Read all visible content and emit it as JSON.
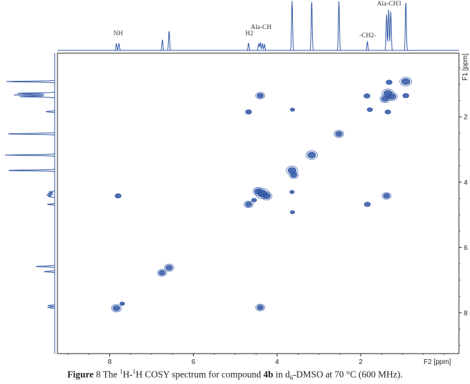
{
  "chart_data": {
    "type": "heatmap",
    "title": "",
    "xlabel": "F2 [ppm]",
    "ylabel": "F1 [ppm]",
    "xlim": [
      9.25,
      -0.35
    ],
    "ylim": [
      0.05,
      9.25
    ],
    "x_ticks": [
      "8",
      "6",
      "4",
      "2"
    ],
    "x_tick_values": [
      8,
      6,
      4,
      2
    ],
    "y_ticks": [
      "2",
      "4",
      "6",
      "8"
    ],
    "y_tick_values": [
      2,
      4,
      6,
      8
    ],
    "accent_color": "#2f55a4",
    "peak_labels": [
      {
        "text": "NH",
        "ppm": 7.8
      },
      {
        "text": "H2",
        "ppm": 4.66
      },
      {
        "text": "Ala-CH",
        "ppm": 4.38
      },
      {
        "text": "-CH2-",
        "ppm": 1.83
      },
      {
        "text": "Ala-CH3",
        "ppm": 1.32
      }
    ],
    "projection_peaks": [
      {
        "ppm": 7.84,
        "height": 0.14
      },
      {
        "ppm": 7.78,
        "height": 0.14
      },
      {
        "ppm": 6.74,
        "height": 0.22
      },
      {
        "ppm": 6.58,
        "height": 0.4
      },
      {
        "ppm": 4.68,
        "height": 0.15
      },
      {
        "ppm": 4.44,
        "height": 0.13
      },
      {
        "ppm": 4.4,
        "height": 0.16
      },
      {
        "ppm": 4.35,
        "height": 0.14
      },
      {
        "ppm": 4.3,
        "height": 0.12
      },
      {
        "ppm": 3.64,
        "height": 1.0
      },
      {
        "ppm": 3.17,
        "height": 1.0
      },
      {
        "ppm": 2.52,
        "height": 1.0
      },
      {
        "ppm": 1.84,
        "height": 0.18
      },
      {
        "ppm": 1.38,
        "height": 0.72
      },
      {
        "ppm": 1.33,
        "height": 0.82
      },
      {
        "ppm": 1.28,
        "height": 0.78
      },
      {
        "ppm": 0.92,
        "height": 1.0
      }
    ],
    "cross_peaks": [
      {
        "x": 0.92,
        "y": 0.92,
        "size": 1.6
      },
      {
        "x": 1.32,
        "y": 0.94,
        "size": 0.9
      },
      {
        "x": 0.92,
        "y": 1.35,
        "size": 0.9
      },
      {
        "x": 1.35,
        "y": 1.28,
        "size": 1.6
      },
      {
        "x": 1.25,
        "y": 1.38,
        "size": 1.4
      },
      {
        "x": 1.42,
        "y": 1.45,
        "size": 1.2
      },
      {
        "x": 1.85,
        "y": 1.36,
        "size": 0.9
      },
      {
        "x": 1.35,
        "y": 1.85,
        "size": 0.8
      },
      {
        "x": 1.78,
        "y": 1.78,
        "size": 0.7
      },
      {
        "x": 4.4,
        "y": 1.35,
        "size": 1.0
      },
      {
        "x": 4.68,
        "y": 1.85,
        "size": 0.9
      },
      {
        "x": 3.63,
        "y": 1.78,
        "size": 0.4
      },
      {
        "x": 2.52,
        "y": 2.52,
        "size": 1.1
      },
      {
        "x": 3.17,
        "y": 3.17,
        "size": 1.5
      },
      {
        "x": 3.64,
        "y": 3.64,
        "size": 1.5
      },
      {
        "x": 3.6,
        "y": 3.78,
        "size": 1.0
      },
      {
        "x": 3.64,
        "y": 4.3,
        "size": 0.4
      },
      {
        "x": 4.35,
        "y": 4.35,
        "size": 2.0
      },
      {
        "x": 4.25,
        "y": 4.42,
        "size": 1.4
      },
      {
        "x": 4.45,
        "y": 4.28,
        "size": 1.3
      },
      {
        "x": 4.55,
        "y": 4.55,
        "size": 0.6
      },
      {
        "x": 4.68,
        "y": 4.68,
        "size": 1.0
      },
      {
        "x": 3.63,
        "y": 4.92,
        "size": 0.4
      },
      {
        "x": 7.8,
        "y": 4.42,
        "size": 0.9
      },
      {
        "x": 1.38,
        "y": 4.42,
        "size": 1.0
      },
      {
        "x": 1.84,
        "y": 4.68,
        "size": 0.9
      },
      {
        "x": 6.75,
        "y": 6.78,
        "size": 1.0
      },
      {
        "x": 6.58,
        "y": 6.62,
        "size": 1.1
      },
      {
        "x": 7.7,
        "y": 7.72,
        "size": 0.5
      },
      {
        "x": 7.84,
        "y": 7.86,
        "size": 1.2
      },
      {
        "x": 4.4,
        "y": 7.84,
        "size": 1.0
      }
    ]
  },
  "caption": {
    "figure_label": "Figure",
    "figure_number": "8",
    "text_1": "The ",
    "sup_1": "1",
    "text_2": "H-",
    "sup_2": "1",
    "text_3": "H COSY spectrum for compound ",
    "compound": "4b",
    "text_4": " in d",
    "sub_1": "6",
    "text_5": "-DMSO at 70 °C (600 MHz)."
  }
}
